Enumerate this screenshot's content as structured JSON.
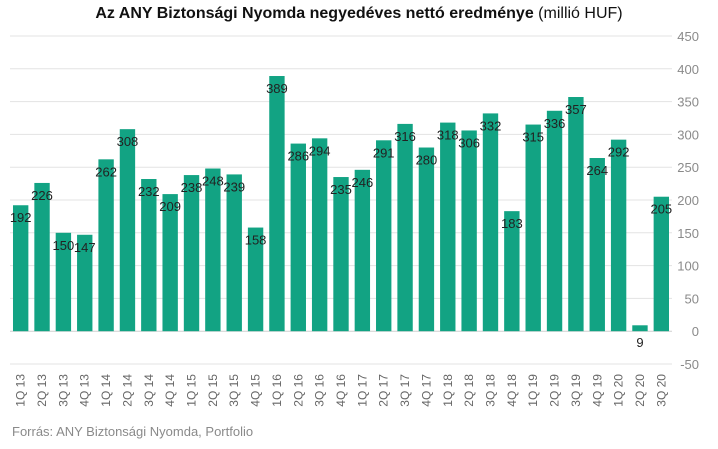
{
  "chart_data": {
    "type": "bar",
    "title": "Az ANY Biztonsági Nyomda negyedéves nettó eredménye",
    "unit": "(millió HUF)",
    "source": "Forrás: ANY Biztonsági Nyomda, Portfolio",
    "colors": {
      "bar": "#12a383",
      "grid": "#e3e3e3",
      "zero": "#cfcfcf"
    },
    "ylim": [
      -50,
      450
    ],
    "yticks": [
      -50,
      0,
      50,
      100,
      150,
      200,
      250,
      300,
      350,
      400,
      450
    ],
    "grid": true,
    "categories": [
      "1Q 13",
      "2Q 13",
      "3Q 13",
      "4Q 13",
      "1Q 14",
      "2Q 14",
      "3Q 14",
      "4Q 14",
      "1Q 15",
      "2Q 15",
      "3Q 15",
      "4Q 15",
      "1Q 16",
      "2Q 16",
      "3Q 16",
      "4Q 16",
      "1Q 17",
      "2Q 17",
      "3Q 17",
      "4Q 17",
      "1Q 18",
      "2Q 18",
      "3Q 18",
      "4Q 18",
      "1Q 19",
      "2Q 19",
      "3Q 19",
      "4Q 19",
      "1Q 20",
      "2Q 20",
      "3Q 20"
    ],
    "values": [
      192,
      226,
      150,
      147,
      262,
      308,
      232,
      209,
      238,
      248,
      239,
      158,
      389,
      286,
      294,
      235,
      246,
      291,
      316,
      280,
      318,
      306,
      332,
      183,
      315,
      336,
      357,
      264,
      292,
      9,
      205
    ]
  }
}
